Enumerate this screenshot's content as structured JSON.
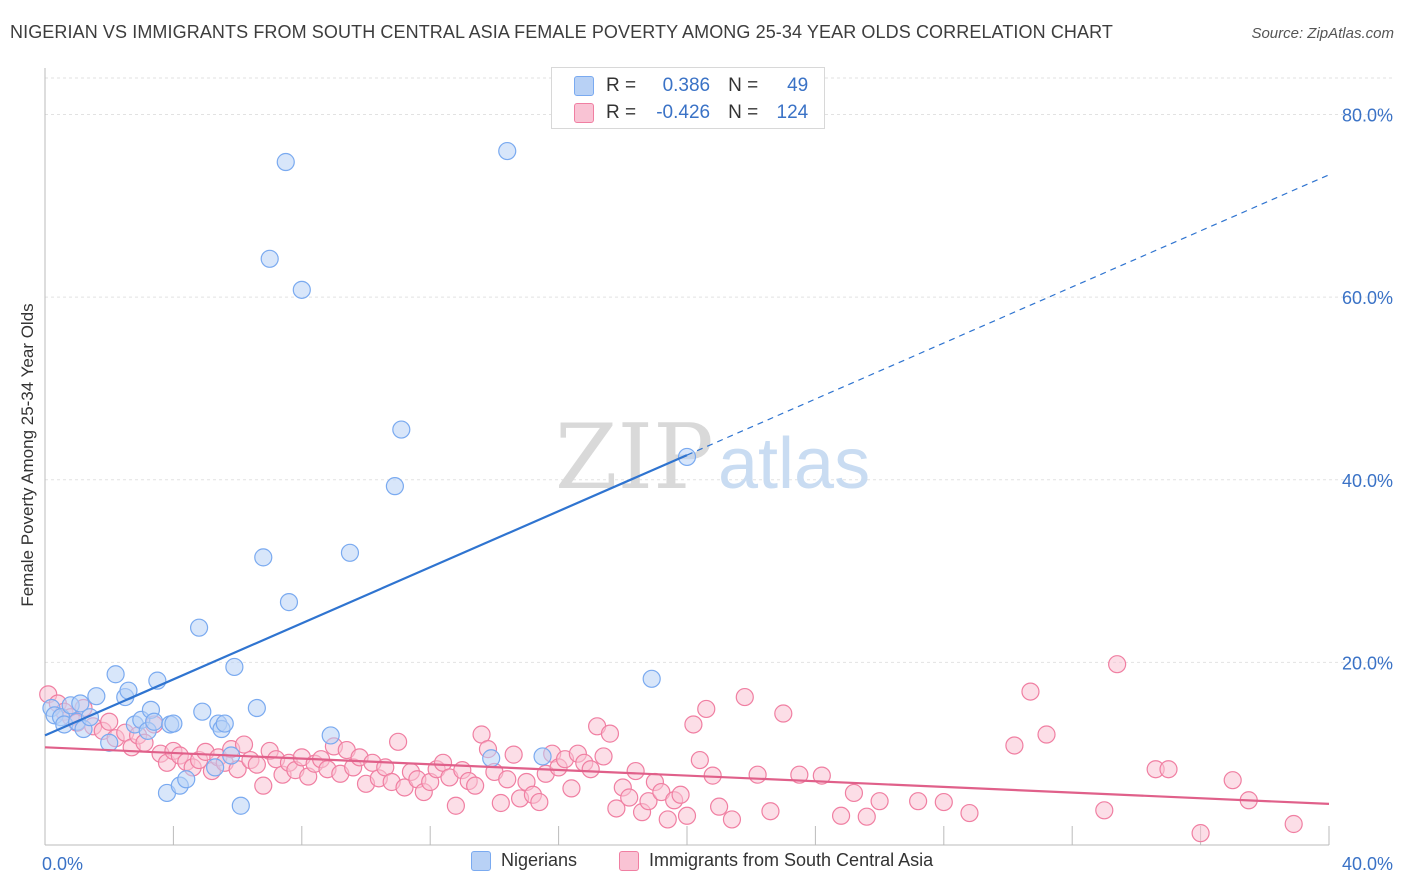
{
  "title": "NIGERIAN VS IMMIGRANTS FROM SOUTH CENTRAL ASIA FEMALE POVERTY AMONG 25-34 YEAR OLDS CORRELATION CHART",
  "source": "Source: ZipAtlas.com",
  "watermark": {
    "part1": "ZIP",
    "part2": "atlas"
  },
  "legend_box": {
    "rows": [
      {
        "r_label": "R =",
        "r_value": "0.386",
        "n_label": "N =",
        "n_value": "49",
        "color": "#7aaaf0",
        "fill": "#b8d1f5"
      },
      {
        "r_label": "R =",
        "r_value": "-0.426",
        "n_label": "N =",
        "n_value": "124",
        "color": "#f07fa2",
        "fill": "#f9c3d4"
      }
    ]
  },
  "bottom_legend": {
    "items": [
      {
        "label": "Nigerians",
        "color": "#7aaaf0",
        "fill": "#b8d1f5"
      },
      {
        "label": "Immigrants from South Central Asia",
        "color": "#f07fa2",
        "fill": "#f9c3d4"
      }
    ]
  },
  "chart_data": {
    "type": "scatter",
    "title": "NIGERIAN VS IMMIGRANTS FROM SOUTH CENTRAL ASIA FEMALE POVERTY AMONG 25-34 YEAR OLDS CORRELATION CHART",
    "xlabel": "",
    "ylabel": "Female Poverty Among 25-34 Year Olds",
    "xlim": [
      0,
      40
    ],
    "ylim": [
      0,
      84
    ],
    "x_tick_labels": [
      "0.0%",
      "40.0%"
    ],
    "y_ticks": [
      20,
      40,
      60,
      80
    ],
    "y_tick_labels": [
      "20.0%",
      "40.0%",
      "60.0%",
      "80.0%"
    ],
    "grid": true,
    "series": [
      {
        "name": "Nigerians",
        "color": "#7aaaf0",
        "fill": "#b8d1f5",
        "line_color": "#2f74d0",
        "trend": {
          "x0": 0,
          "y0": 12.0,
          "x1": 20,
          "y1": 42.7,
          "dash_x1": 40,
          "dash_y1": 73.4
        },
        "points": [
          [
            0.2,
            15.0
          ],
          [
            0.3,
            14.2
          ],
          [
            0.5,
            14.0
          ],
          [
            0.6,
            13.2
          ],
          [
            0.8,
            15.3
          ],
          [
            1.0,
            13.5
          ],
          [
            1.1,
            15.5
          ],
          [
            1.2,
            12.7
          ],
          [
            1.4,
            14.0
          ],
          [
            1.6,
            16.3
          ],
          [
            2.0,
            11.2
          ],
          [
            2.2,
            18.7
          ],
          [
            2.5,
            16.2
          ],
          [
            2.6,
            16.9
          ],
          [
            2.8,
            13.2
          ],
          [
            3.0,
            13.7
          ],
          [
            3.2,
            12.5
          ],
          [
            3.3,
            14.8
          ],
          [
            3.4,
            13.5
          ],
          [
            3.5,
            18.0
          ],
          [
            3.8,
            5.7
          ],
          [
            3.9,
            13.2
          ],
          [
            4.0,
            13.3
          ],
          [
            4.2,
            6.5
          ],
          [
            4.4,
            7.2
          ],
          [
            4.8,
            23.8
          ],
          [
            4.9,
            14.6
          ],
          [
            5.3,
            8.5
          ],
          [
            5.4,
            13.3
          ],
          [
            5.5,
            12.7
          ],
          [
            5.6,
            13.3
          ],
          [
            5.8,
            9.8
          ],
          [
            5.9,
            19.5
          ],
          [
            6.1,
            4.3
          ],
          [
            6.6,
            15.0
          ],
          [
            6.8,
            31.5
          ],
          [
            7.0,
            64.2
          ],
          [
            7.5,
            74.8
          ],
          [
            7.6,
            26.6
          ],
          [
            8.0,
            60.8
          ],
          [
            8.9,
            12.0
          ],
          [
            9.5,
            32.0
          ],
          [
            10.9,
            39.3
          ],
          [
            11.1,
            45.5
          ],
          [
            13.9,
            9.5
          ],
          [
            14.4,
            76.0
          ],
          [
            15.5,
            9.7
          ],
          [
            18.9,
            18.2
          ],
          [
            20.0,
            42.5
          ]
        ]
      },
      {
        "name": "Immigrants from South Central Asia",
        "color": "#f07fa2",
        "fill": "#f9c3d4",
        "line_color": "#e0608a",
        "trend": {
          "x0": 0,
          "y0": 10.7,
          "x1": 40,
          "y1": 4.5
        },
        "points": [
          [
            0.1,
            16.5
          ],
          [
            0.4,
            15.5
          ],
          [
            0.6,
            14.6
          ],
          [
            0.8,
            14.0
          ],
          [
            1.0,
            13.4
          ],
          [
            1.2,
            15.0
          ],
          [
            1.5,
            13.0
          ],
          [
            1.8,
            12.5
          ],
          [
            2.0,
            13.5
          ],
          [
            2.2,
            11.7
          ],
          [
            2.5,
            12.3
          ],
          [
            2.7,
            10.7
          ],
          [
            2.9,
            12.0
          ],
          [
            3.1,
            11.2
          ],
          [
            3.4,
            13.2
          ],
          [
            3.6,
            10.0
          ],
          [
            3.8,
            9.0
          ],
          [
            4.0,
            10.3
          ],
          [
            4.2,
            9.8
          ],
          [
            4.4,
            9.1
          ],
          [
            4.6,
            8.5
          ],
          [
            4.8,
            9.3
          ],
          [
            5.0,
            10.2
          ],
          [
            5.2,
            8.1
          ],
          [
            5.4,
            9.6
          ],
          [
            5.6,
            9.0
          ],
          [
            5.8,
            10.5
          ],
          [
            6.0,
            8.3
          ],
          [
            6.2,
            11.0
          ],
          [
            6.4,
            9.3
          ],
          [
            6.6,
            8.8
          ],
          [
            6.8,
            6.5
          ],
          [
            7.0,
            10.3
          ],
          [
            7.2,
            9.4
          ],
          [
            7.4,
            7.7
          ],
          [
            7.6,
            9.0
          ],
          [
            7.8,
            8.2
          ],
          [
            8.0,
            9.6
          ],
          [
            8.2,
            7.5
          ],
          [
            8.4,
            8.9
          ],
          [
            8.6,
            9.4
          ],
          [
            8.8,
            8.3
          ],
          [
            9.0,
            10.8
          ],
          [
            9.2,
            7.8
          ],
          [
            9.4,
            10.4
          ],
          [
            9.6,
            8.5
          ],
          [
            9.8,
            9.6
          ],
          [
            10.0,
            6.7
          ],
          [
            10.2,
            9.0
          ],
          [
            10.4,
            7.3
          ],
          [
            10.6,
            8.5
          ],
          [
            10.8,
            6.9
          ],
          [
            11.0,
            11.3
          ],
          [
            11.2,
            6.3
          ],
          [
            11.4,
            8.0
          ],
          [
            11.6,
            7.2
          ],
          [
            11.8,
            5.8
          ],
          [
            12.0,
            6.9
          ],
          [
            12.2,
            8.3
          ],
          [
            12.4,
            9.0
          ],
          [
            12.6,
            7.4
          ],
          [
            12.8,
            4.3
          ],
          [
            13.0,
            8.2
          ],
          [
            13.2,
            7.0
          ],
          [
            13.4,
            6.5
          ],
          [
            13.6,
            12.1
          ],
          [
            13.8,
            10.5
          ],
          [
            14.0,
            8.0
          ],
          [
            14.2,
            4.6
          ],
          [
            14.4,
            7.2
          ],
          [
            14.6,
            9.9
          ],
          [
            14.8,
            5.1
          ],
          [
            15.0,
            6.9
          ],
          [
            15.2,
            5.5
          ],
          [
            15.4,
            4.7
          ],
          [
            15.6,
            7.8
          ],
          [
            15.8,
            10.0
          ],
          [
            16.0,
            8.5
          ],
          [
            16.2,
            9.4
          ],
          [
            16.4,
            6.2
          ],
          [
            16.6,
            10.0
          ],
          [
            16.8,
            9.0
          ],
          [
            17.0,
            8.3
          ],
          [
            17.2,
            13.0
          ],
          [
            17.4,
            9.7
          ],
          [
            17.6,
            12.2
          ],
          [
            17.8,
            4.0
          ],
          [
            18.0,
            6.3
          ],
          [
            18.2,
            5.2
          ],
          [
            18.4,
            8.1
          ],
          [
            18.6,
            3.6
          ],
          [
            18.8,
            4.8
          ],
          [
            19.0,
            6.9
          ],
          [
            19.2,
            5.8
          ],
          [
            19.4,
            2.8
          ],
          [
            19.6,
            4.9
          ],
          [
            19.8,
            5.5
          ],
          [
            20.0,
            3.2
          ],
          [
            20.2,
            13.2
          ],
          [
            20.4,
            9.3
          ],
          [
            20.6,
            14.9
          ],
          [
            20.8,
            7.6
          ],
          [
            21.0,
            4.2
          ],
          [
            21.4,
            2.8
          ],
          [
            21.8,
            16.2
          ],
          [
            22.2,
            7.7
          ],
          [
            22.6,
            3.7
          ],
          [
            23.0,
            14.4
          ],
          [
            23.5,
            7.7
          ],
          [
            24.2,
            7.6
          ],
          [
            24.8,
            3.2
          ],
          [
            25.2,
            5.7
          ],
          [
            25.6,
            3.1
          ],
          [
            26.0,
            4.8
          ],
          [
            27.2,
            4.8
          ],
          [
            28.0,
            4.7
          ],
          [
            28.8,
            3.5
          ],
          [
            30.2,
            10.9
          ],
          [
            30.7,
            16.8
          ],
          [
            31.2,
            12.1
          ],
          [
            33.0,
            3.8
          ],
          [
            33.4,
            19.8
          ],
          [
            34.6,
            8.3
          ],
          [
            35.0,
            8.3
          ],
          [
            36.0,
            1.3
          ],
          [
            37.0,
            7.1
          ],
          [
            37.5,
            4.9
          ],
          [
            38.9,
            2.3
          ]
        ]
      }
    ]
  }
}
